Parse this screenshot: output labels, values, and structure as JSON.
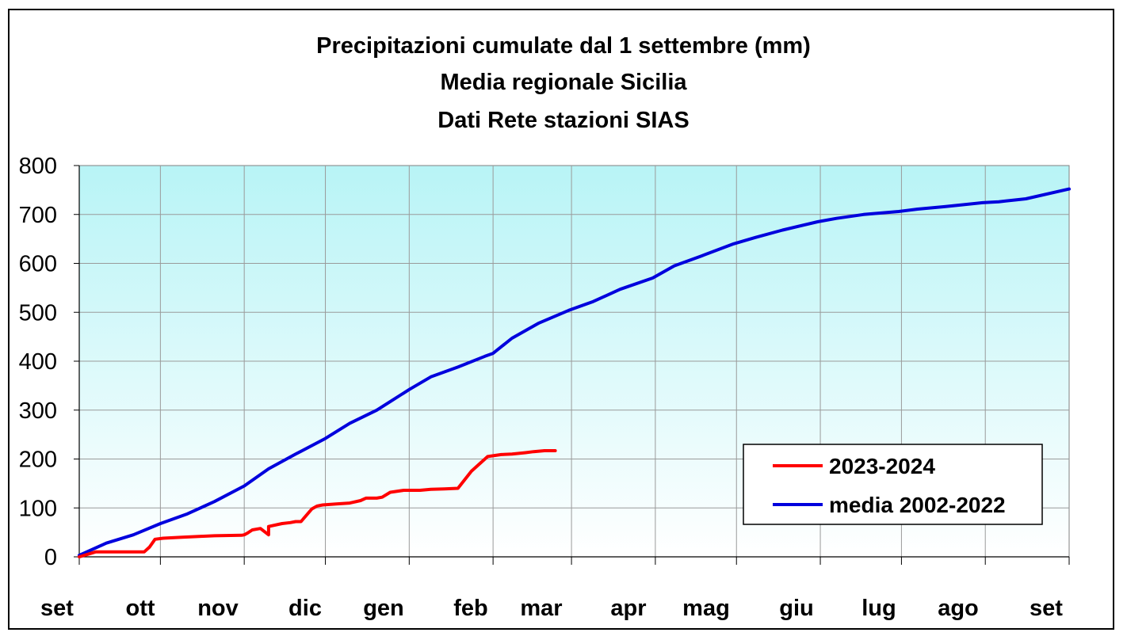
{
  "chart_data": {
    "type": "line",
    "title_lines": [
      "Precipitazioni cumulate dal 1 settembre (mm)",
      "Media regionale Sicilia",
      "Dati Rete stazioni SIAS"
    ],
    "xlabel": "",
    "ylabel": "",
    "ylim": [
      0,
      800
    ],
    "yticks": [
      0,
      100,
      200,
      300,
      400,
      500,
      600,
      700,
      800
    ],
    "x_month_labels": [
      "set",
      "ott",
      "nov",
      "dic",
      "gen",
      "feb",
      "mar",
      "apr",
      "mag",
      "giu",
      "lug",
      "ago",
      "set"
    ],
    "x_unit": "days since 1 September",
    "xlim": [
      0,
      366
    ],
    "grid": true,
    "legend_position": "bottom-right",
    "series": [
      {
        "name": "2023-2024",
        "color": "#ff0000",
        "x": [
          0,
          3,
          6,
          10,
          15,
          20,
          24,
          26,
          28,
          31,
          38,
          45,
          50,
          60,
          70,
          61,
          62,
          64,
          67,
          70,
          75,
          78,
          80,
          82,
          86,
          88,
          90,
          95,
          100,
          104,
          106,
          110,
          112,
          115,
          120,
          124,
          126,
          128,
          130,
          135,
          140,
          145,
          151,
          156,
          160,
          165,
          168,
          172,
          176
        ],
        "y": [
          0,
          5,
          10,
          10,
          10,
          10,
          10,
          20,
          36,
          38,
          40,
          42,
          43,
          44,
          45,
          45,
          48,
          55,
          58,
          62,
          68,
          70,
          72,
          72,
          98,
          104,
          106,
          108,
          110,
          115,
          120,
          120,
          122,
          132,
          136,
          136,
          136,
          137,
          138,
          139,
          140,
          175,
          205,
          209,
          210,
          213,
          215,
          217,
          217
        ]
      },
      {
        "name": "media 2002-2022",
        "color": "#0000dd",
        "x": [
          0,
          10,
          20,
          30,
          40,
          50,
          61,
          70,
          80,
          91,
          100,
          110,
          122,
          130,
          140,
          150,
          153,
          160,
          170,
          181,
          190,
          200,
          212,
          220,
          230,
          242,
          250,
          260,
          273,
          280,
          290,
          303,
          310,
          320,
          334,
          340,
          350,
          366
        ],
        "y": [
          3,
          28,
          45,
          68,
          88,
          113,
          145,
          180,
          210,
          242,
          273,
          300,
          342,
          368,
          388,
          410,
          416,
          447,
          478,
          504,
          522,
          547,
          570,
          595,
          615,
          640,
          653,
          668,
          685,
          692,
          700,
          706,
          711,
          716,
          724,
          726,
          732,
          752
        ]
      }
    ]
  }
}
